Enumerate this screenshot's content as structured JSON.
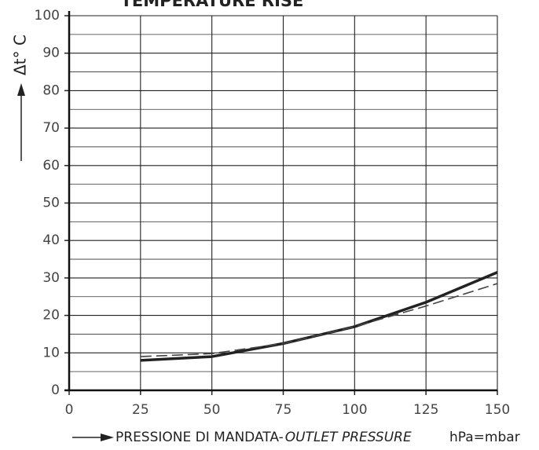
{
  "chart_data": {
    "type": "line",
    "title": "TEMPERATURE RISE",
    "x_label": "PRESSIONE DI MANDATA-",
    "x_label_italic": "OUTLET PRESSURE",
    "x_unit": "hPa=mbar",
    "y_label": "Δt° C",
    "x": [
      25,
      50,
      75,
      100,
      125,
      150
    ],
    "series": [
      {
        "color": "#222222",
        "style": "solid",
        "values": [
          8,
          9,
          12.5,
          17,
          23.5,
          31.5
        ]
      },
      {
        "color": "#444444",
        "style": "dashed",
        "values": [
          9,
          9.8,
          12.5,
          17,
          22.5,
          28.5
        ]
      }
    ],
    "xlim": [
      0,
      150
    ],
    "xticks": [
      0,
      25,
      50,
      75,
      100,
      125,
      150
    ],
    "ylim": [
      0,
      100
    ],
    "yticks": [
      0,
      10,
      20,
      30,
      40,
      50,
      60,
      70,
      80,
      90,
      100
    ],
    "minor_yticks": [
      5,
      15,
      25,
      35,
      45,
      55,
      65,
      75,
      85,
      95
    ],
    "grid": true
  }
}
